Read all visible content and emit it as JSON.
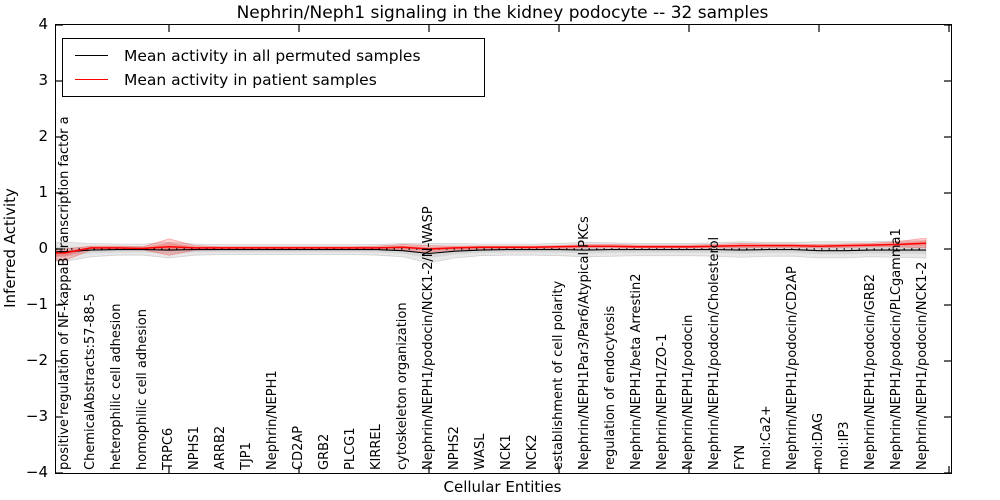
{
  "title": "Nephrin/Neph1 signaling in the kidney podocyte -- 32 samples",
  "axes": {
    "ylabel": "Inferred Activity",
    "xlabel": "Cellular Entities",
    "yticks": [
      "4",
      "3",
      "2",
      "1",
      "0",
      "−1",
      "−2",
      "−3",
      "−4"
    ]
  },
  "legend": [
    {
      "label": "Mean activity in all permuted samples",
      "color": "#000000"
    },
    {
      "label": "Mean activity in patient samples",
      "color": "#ff0000"
    }
  ],
  "colors": {
    "permuted_line": "#000000",
    "patient_line": "#ff0000",
    "permuted_band": "rgba(0,0,0,0.10)",
    "patient_band": "rgba(255,0,0,0.20)",
    "zero_line": "#000000"
  },
  "chart_data": {
    "type": "line",
    "title": "Nephrin/Neph1 signaling in the kidney podocyte -- 32 samples",
    "xlabel": "Cellular Entities",
    "ylabel": "Inferred Activity",
    "ylim": [
      -4,
      4
    ],
    "grid": false,
    "legend_position": "upper left",
    "zero_line_style": "dotted",
    "categories": [
      "positive regulation of NF-kappaB transcription factor a",
      "ChemicalAbstracts:57-88-5",
      "heterophilic cell adhesion",
      "homophilic cell adhesion",
      "TRPC6",
      "NPHS1",
      "ARRB2",
      "TJP1",
      "Nephrin/NEPH1",
      "CD2AP",
      "GRB2",
      "PLCG1",
      "KIRREL",
      "cytoskeleton organization",
      "Nephrin/NEPH1/podocin/NCK1-2/N-WASP",
      "NPHS2",
      "WASL",
      "NCK1",
      "NCK2",
      "establishment of cell polarity",
      "Nephrin/NEPH1Par3/Par6/Atypical PKCs",
      "regulation of endocytosis",
      "Nephrin/NEPH1/beta Arrestin2",
      "Nephrin/NEPH1/ZO-1",
      "Nephrin/NEPH1/podocin",
      "Nephrin/NEPH1/podocin/Cholesterol",
      "FYN",
      "mol:Ca2+",
      "Nephrin/NEPH1/podocin/CD2AP",
      "mol:DAG",
      "mol:IP3",
      "Nephrin/NEPH1/podocin/GRB2",
      "Nephrin/NEPH1/podocin/PLCgamma1",
      "Nephrin/NEPH1/podocin/NCK1-2"
    ],
    "series": [
      {
        "name": "Mean activity in all permuted samples",
        "color": "#000000",
        "values": [
          -0.05,
          -0.02,
          -0.01,
          -0.01,
          -0.02,
          -0.01,
          -0.01,
          -0.01,
          -0.01,
          -0.01,
          -0.01,
          -0.01,
          -0.01,
          -0.03,
          -0.08,
          -0.04,
          -0.02,
          -0.01,
          -0.01,
          -0.01,
          -0.02,
          -0.01,
          -0.01,
          -0.01,
          -0.01,
          -0.01,
          -0.02,
          -0.01,
          -0.01,
          -0.03,
          -0.03,
          -0.02,
          -0.02,
          -0.02
        ],
        "band_upper": [
          0.12,
          0.1,
          0.09,
          0.09,
          0.12,
          0.09,
          0.08,
          0.08,
          0.08,
          0.08,
          0.08,
          0.08,
          0.08,
          0.1,
          0.1,
          0.1,
          0.09,
          0.09,
          0.09,
          0.1,
          0.12,
          0.11,
          0.1,
          0.1,
          0.1,
          0.11,
          0.13,
          0.12,
          0.12,
          0.13,
          0.13,
          0.13,
          0.14,
          0.15
        ],
        "band_lower": [
          -0.22,
          -0.14,
          -0.11,
          -0.11,
          -0.16,
          -0.11,
          -0.1,
          -0.1,
          -0.1,
          -0.1,
          -0.1,
          -0.1,
          -0.11,
          -0.14,
          -0.25,
          -0.16,
          -0.12,
          -0.11,
          -0.11,
          -0.12,
          -0.14,
          -0.13,
          -0.12,
          -0.12,
          -0.12,
          -0.13,
          -0.15,
          -0.13,
          -0.13,
          -0.16,
          -0.16,
          -0.14,
          -0.15,
          -0.16
        ]
      },
      {
        "name": "Mean activity in patient samples",
        "color": "#ff0000",
        "values": [
          -0.07,
          0.02,
          0.02,
          0.01,
          0.04,
          0.02,
          0.02,
          0.02,
          0.02,
          0.02,
          0.02,
          0.02,
          0.02,
          0.03,
          0.0,
          0.02,
          0.03,
          0.03,
          0.03,
          0.04,
          0.05,
          0.05,
          0.04,
          0.04,
          0.04,
          0.05,
          0.06,
          0.06,
          0.06,
          0.05,
          0.06,
          0.07,
          0.08,
          0.1
        ],
        "band_upper": [
          0.0,
          0.05,
          0.05,
          0.04,
          0.18,
          0.06,
          0.04,
          0.04,
          0.04,
          0.04,
          0.04,
          0.04,
          0.05,
          0.08,
          0.06,
          0.05,
          0.05,
          0.05,
          0.05,
          0.06,
          0.08,
          0.08,
          0.07,
          0.07,
          0.07,
          0.08,
          0.1,
          0.09,
          0.09,
          0.08,
          0.09,
          0.1,
          0.13,
          0.19
        ],
        "band_lower": [
          -0.2,
          -0.02,
          -0.01,
          -0.01,
          -0.11,
          -0.02,
          -0.01,
          -0.01,
          -0.01,
          -0.01,
          -0.01,
          -0.01,
          -0.01,
          -0.02,
          -0.06,
          -0.02,
          0.0,
          0.0,
          0.0,
          0.01,
          0.02,
          0.02,
          0.02,
          0.02,
          0.02,
          0.02,
          0.02,
          0.03,
          0.03,
          0.02,
          0.03,
          0.04,
          0.04,
          0.02
        ]
      }
    ]
  }
}
